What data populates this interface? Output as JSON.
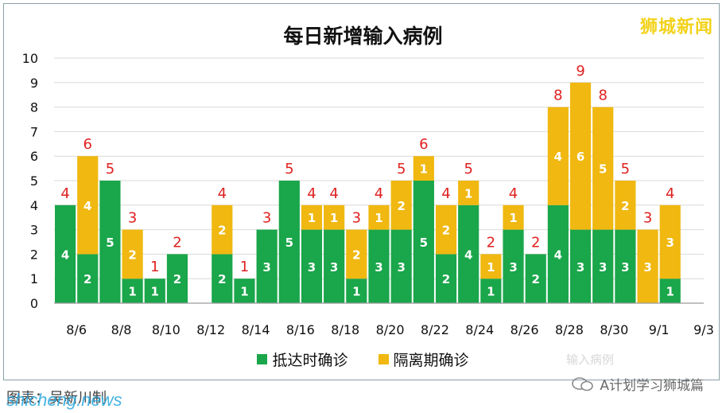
{
  "watermark": "狮城新闻",
  "caption": "图表：吴新川制",
  "brand": "shicheng.news",
  "social_label": "A计划学习狮城篇",
  "faint_label": "输入病例",
  "colors": {
    "arrival": "#1aa64a",
    "quarantine": "#f0b810",
    "total_label": "#e02020",
    "grid": "#d9d9d9"
  },
  "chart_data": {
    "type": "bar",
    "stacked": true,
    "title": "每日新增输入病例",
    "categories": [
      "8/6",
      "8/7",
      "8/8",
      "8/9",
      "8/10",
      "8/11",
      "8/12",
      "8/13",
      "8/14",
      "8/15",
      "8/16",
      "8/17",
      "8/18",
      "8/19",
      "8/20",
      "8/21",
      "8/22",
      "8/23",
      "8/24",
      "8/25",
      "8/26",
      "8/27",
      "8/28",
      "8/29",
      "8/30",
      "8/31",
      "9/1",
      "9/2",
      "9/3"
    ],
    "tick_labels": [
      "8/6",
      "8/8",
      "8/10",
      "8/12",
      "8/14",
      "8/16",
      "8/18",
      "8/20",
      "8/22",
      "8/24",
      "8/26",
      "8/28",
      "8/30",
      "9/1",
      "9/3"
    ],
    "series": [
      {
        "name": "抵达时确诊",
        "color": "#1aa64a",
        "values": [
          4,
          2,
          5,
          1,
          1,
          2,
          0,
          2,
          1,
          3,
          5,
          3,
          3,
          1,
          3,
          3,
          5,
          2,
          4,
          1,
          3,
          2,
          4,
          3,
          3,
          3,
          0,
          1,
          0
        ]
      },
      {
        "name": "隔离期确诊",
        "color": "#f0b810",
        "values": [
          0,
          4,
          0,
          2,
          0,
          0,
          0,
          2,
          0,
          0,
          0,
          1,
          1,
          2,
          1,
          2,
          1,
          2,
          1,
          1,
          1,
          0,
          4,
          6,
          5,
          2,
          3,
          3,
          0
        ]
      }
    ],
    "totals": [
      4,
      6,
      5,
      3,
      1,
      2,
      0,
      4,
      1,
      3,
      5,
      4,
      4,
      3,
      4,
      5,
      6,
      4,
      5,
      2,
      4,
      2,
      8,
      9,
      8,
      5,
      3,
      4,
      0
    ],
    "ylim": [
      0,
      10
    ],
    "yticks": [
      0,
      1,
      2,
      3,
      4,
      5,
      6,
      7,
      8,
      9,
      10
    ],
    "grid": true,
    "legend_position": "bottom"
  }
}
